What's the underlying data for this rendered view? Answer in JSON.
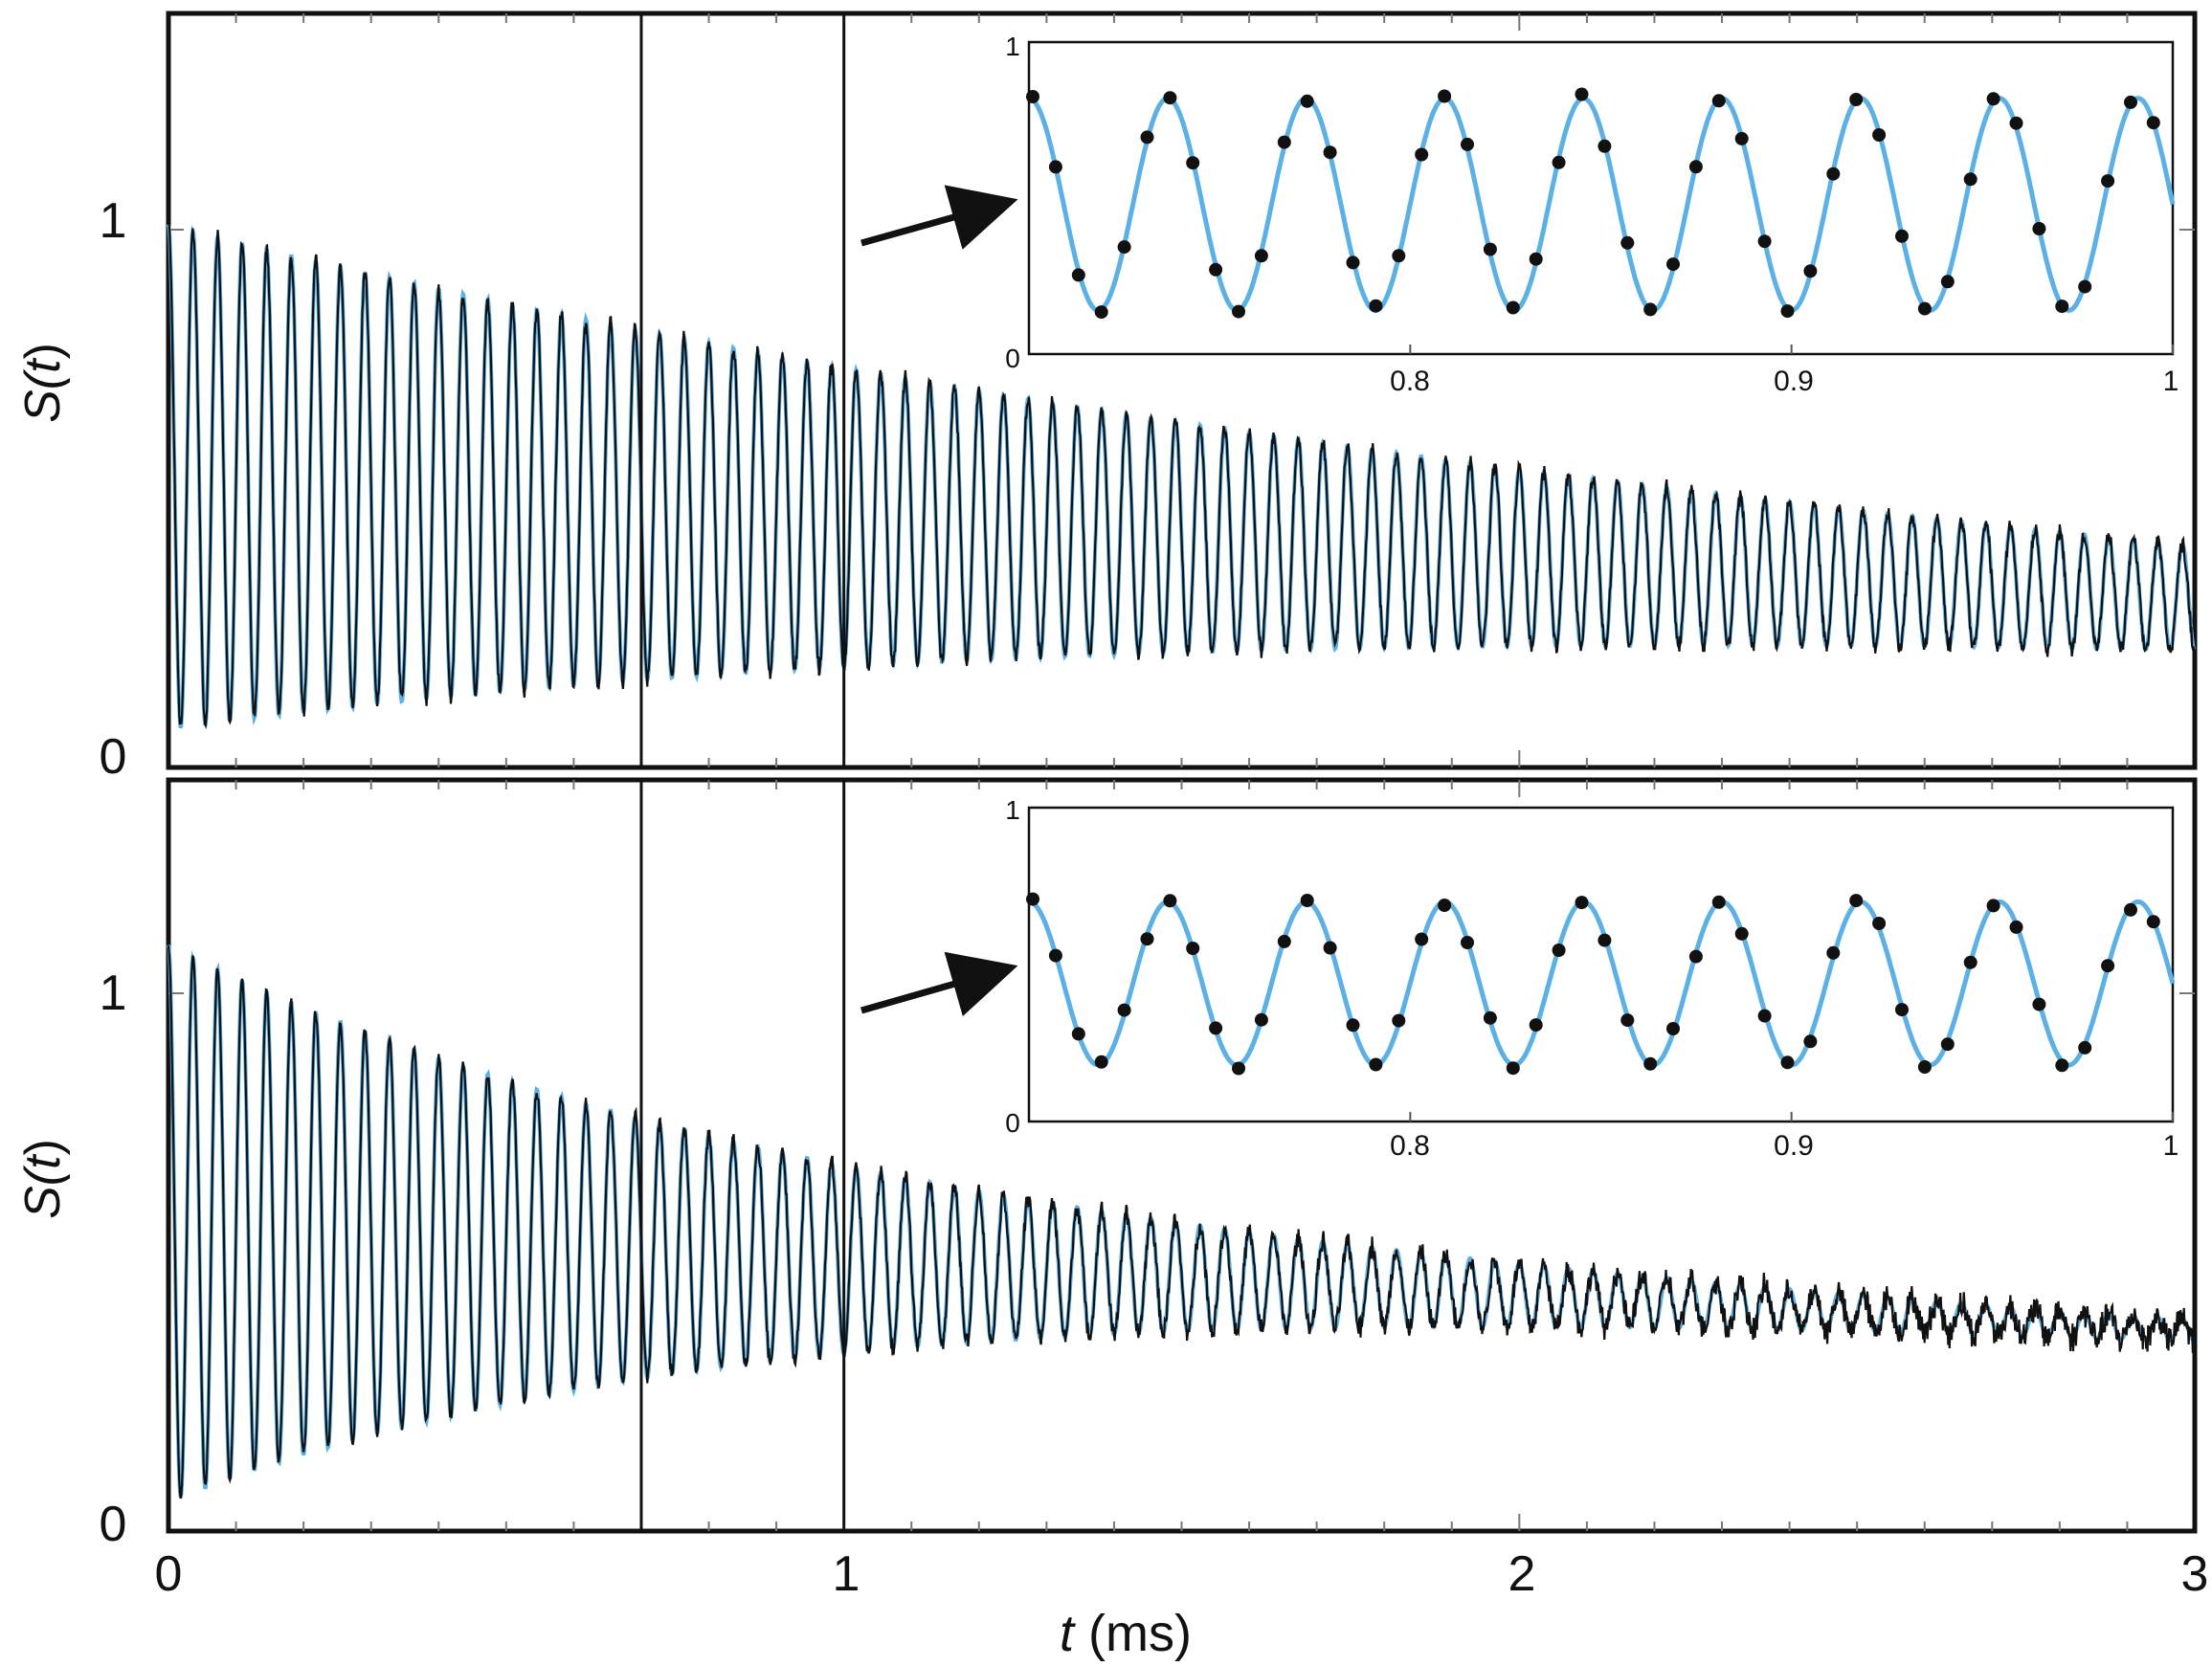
{
  "figure": {
    "xlabel_var": "t",
    "xlabel_unit": " (ms)",
    "ylabel_fn": "S(",
    "ylabel_var": "t",
    "ylabel_close": ")"
  },
  "colors": {
    "fit": "#5bb0e6",
    "data": "#111111",
    "axes": "#111111"
  },
  "chart_data": [
    {
      "type": "line",
      "panel": "top",
      "xlabel": "t (ms)",
      "ylabel": "S(t)",
      "xlim": [
        0,
        3
      ],
      "ylim": [
        0,
        1.1
      ],
      "xticks": [
        "0",
        "1",
        "2",
        "3"
      ],
      "yticks": [
        "0",
        "1"
      ],
      "vlines": [
        0.7,
        1.0
      ],
      "series": [
        {
          "role": "fit",
          "color": "#5bb0e6",
          "frequency_kHz": 27.5,
          "offset_start": 0.53,
          "offset_end": 0.3,
          "amplitude_start": 0.48,
          "amplitude_end": 0.1
        },
        {
          "role": "measured",
          "color": "#111111",
          "frequency_kHz": 27.5,
          "offset_start": 0.53,
          "offset_end": 0.3,
          "amplitude_start": 0.48,
          "amplitude_end": 0.1
        }
      ],
      "inset": {
        "xlim": [
          0.7,
          1.0
        ],
        "ylim": [
          0,
          1
        ],
        "xticks": [
          "0.8",
          "0.9",
          "1"
        ],
        "yticks": [
          "0",
          "1"
        ],
        "fit": {
          "frequency_kHz": 27.5,
          "offset": 0.48,
          "amplitude": 0.34,
          "phase_ms": 0.7
        },
        "points_per_ms": 166.7
      }
    },
    {
      "type": "line",
      "panel": "bottom",
      "xlabel": "t (ms)",
      "ylabel": "S(t)",
      "xlim": [
        0,
        3
      ],
      "ylim": [
        0,
        1.1
      ],
      "xticks": [
        "0",
        "1",
        "2",
        "3"
      ],
      "yticks": [
        "0",
        "1"
      ],
      "vlines": [
        0.7,
        1.0
      ],
      "series": [
        {
          "role": "fit",
          "color": "#5bb0e6",
          "frequency_kHz": 27.5,
          "offset_start": 0.57,
          "offset_end": 0.37,
          "amplitude_start": 0.52,
          "amplitude_end": 0.02
        },
        {
          "role": "measured",
          "color": "#111111",
          "frequency_kHz": 27.5,
          "offset_start": 0.57,
          "offset_end": 0.37,
          "amplitude_start": 0.52,
          "amplitude_end": 0.02
        }
      ],
      "inset": {
        "xlim": [
          0.7,
          1.0
        ],
        "ylim": [
          0,
          1
        ],
        "xticks": [
          "0.8",
          "0.9",
          "1"
        ],
        "yticks": [
          "0",
          "1"
        ],
        "fit": {
          "frequency_kHz": 27.5,
          "offset": 0.44,
          "amplitude": 0.26,
          "phase_ms": 0.7
        },
        "points_per_ms": 166.7
      }
    }
  ]
}
